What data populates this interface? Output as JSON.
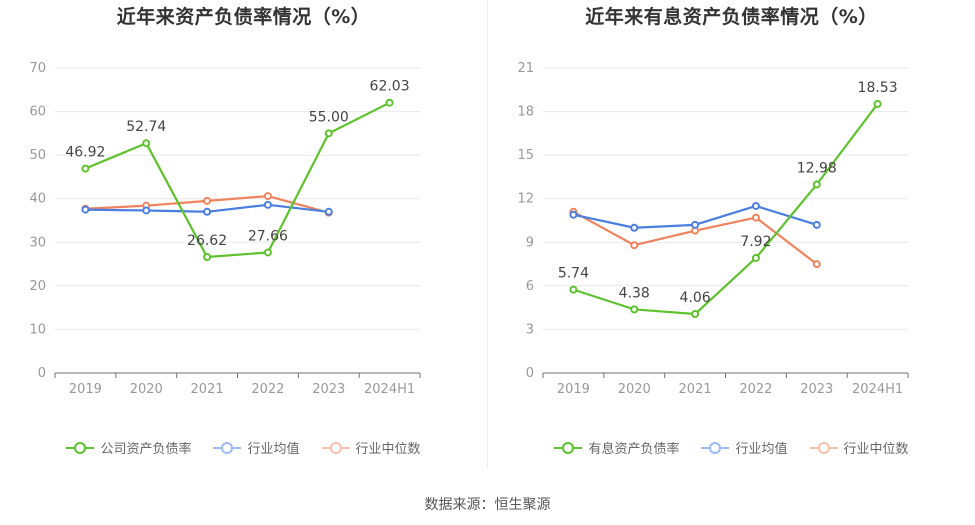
{
  "footer": "数据来源：恒生聚源",
  "chart_data": [
    {
      "type": "line",
      "title": "近年来资产负债率情况（%）",
      "categories": [
        "2019",
        "2020",
        "2021",
        "2022",
        "2023",
        "2024H1"
      ],
      "ylim": [
        0,
        70
      ],
      "yticks": [
        0,
        10,
        20,
        30,
        40,
        50,
        60,
        70
      ],
      "legend_position": "bottom",
      "series": [
        {
          "name": "公司资产负债率",
          "color": "#5ec22c",
          "values": [
            46.92,
            52.74,
            26.62,
            27.66,
            55.0,
            62.03
          ],
          "labels": [
            "46.92",
            "52.74",
            "26.62",
            "27.66",
            "55.00",
            "62.03"
          ]
        },
        {
          "name": "行业均值",
          "color": "#4a7fe0",
          "values": [
            37.5,
            37.3,
            37.0,
            38.6,
            37.0,
            null
          ]
        },
        {
          "name": "行业中位数",
          "color": "#f0825c",
          "values": [
            37.7,
            38.4,
            39.5,
            40.6,
            36.8,
            null
          ]
        }
      ]
    },
    {
      "type": "line",
      "title": "近年来有息资产负债率情况（%）",
      "categories": [
        "2019",
        "2020",
        "2021",
        "2022",
        "2023",
        "2024H1"
      ],
      "ylim": [
        0,
        21
      ],
      "yticks": [
        0,
        3,
        6,
        9,
        12,
        15,
        18,
        21
      ],
      "legend_position": "bottom",
      "series": [
        {
          "name": "有息资产负债率",
          "color": "#5ec22c",
          "values": [
            5.74,
            4.38,
            4.06,
            7.92,
            12.98,
            18.53
          ],
          "labels": [
            "5.74",
            "4.38",
            "4.06",
            "7.92",
            "12.98",
            "18.53"
          ]
        },
        {
          "name": "行业均值",
          "color": "#4a7fe0",
          "values": [
            10.9,
            10.0,
            10.2,
            11.5,
            10.2,
            null
          ]
        },
        {
          "name": "行业中位数",
          "color": "#f0825c",
          "values": [
            11.1,
            8.8,
            9.8,
            10.7,
            7.5,
            null
          ]
        }
      ]
    }
  ]
}
